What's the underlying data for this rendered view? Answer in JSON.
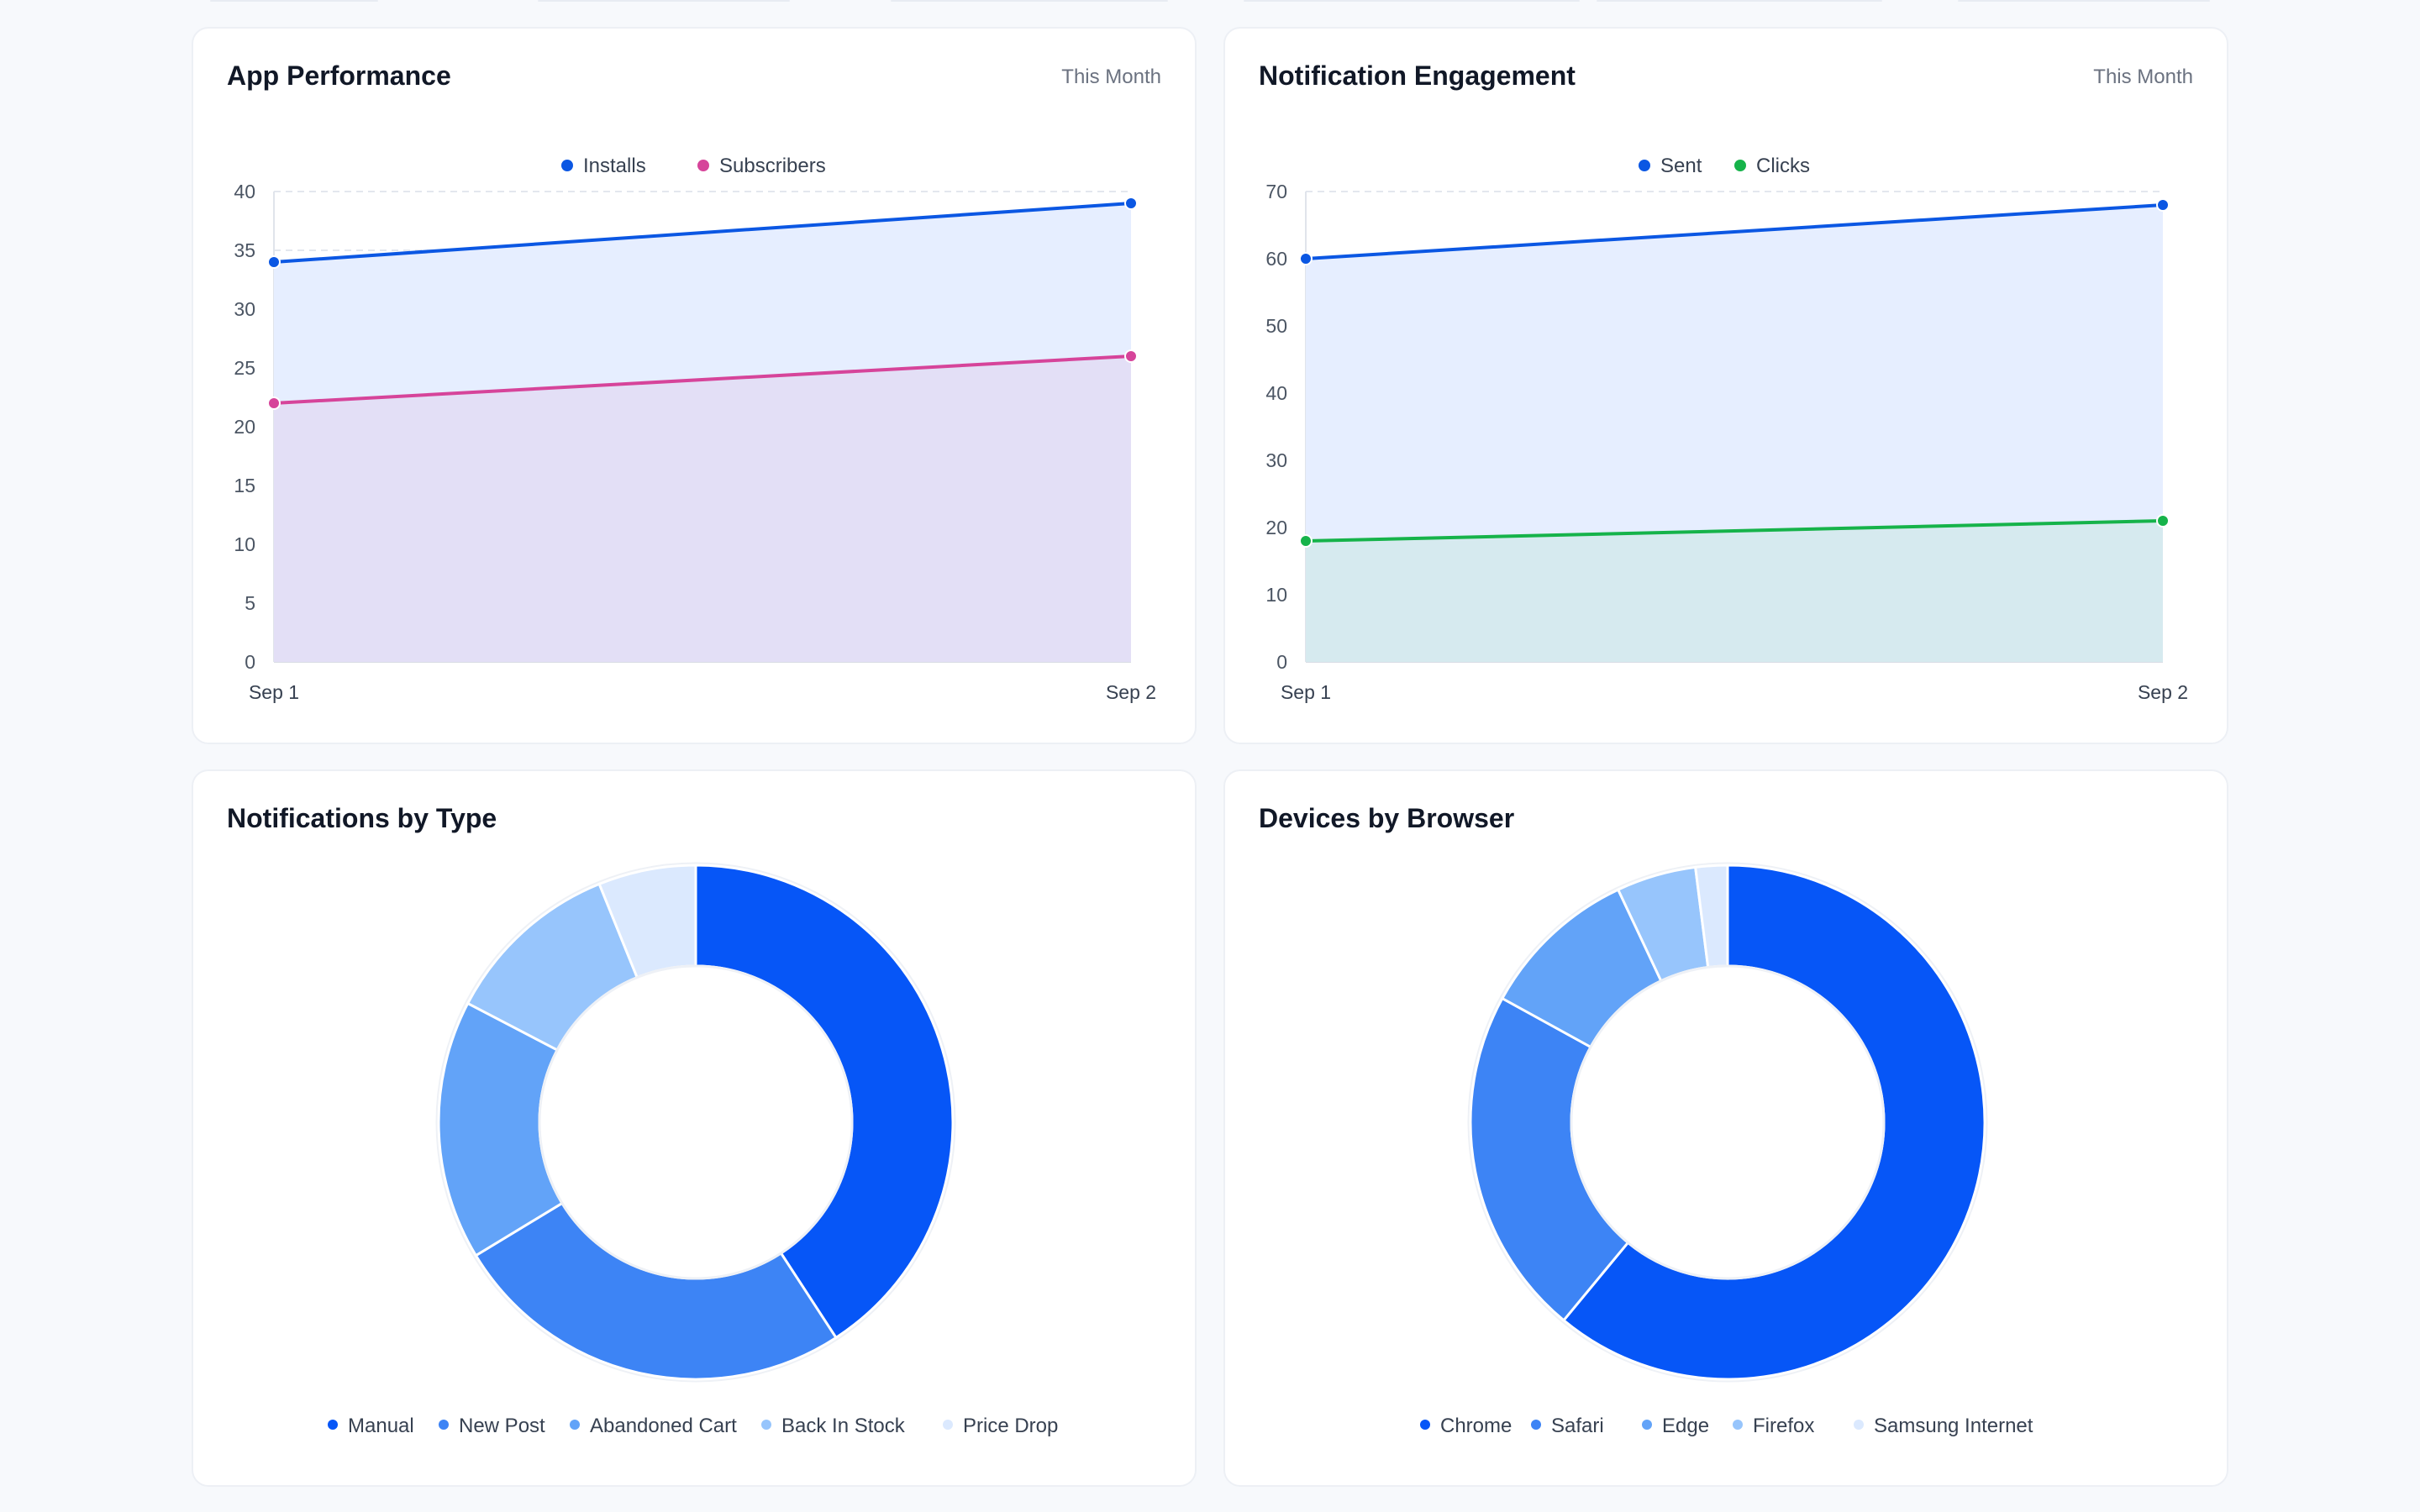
{
  "cards": {
    "app_performance": {
      "title": "App Performance",
      "period": "This Month"
    },
    "notification_engagement": {
      "title": "Notification Engagement",
      "period": "This Month"
    },
    "notifications_by_type": {
      "title": "Notifications by Type"
    },
    "devices_by_browser": {
      "title": "Devices by Browser"
    }
  },
  "chart_data": [
    {
      "id": "app-performance",
      "type": "area",
      "title": "App Performance",
      "x": [
        "Sep 1",
        "Sep 2"
      ],
      "series": [
        {
          "name": "Installs",
          "values": [
            34,
            39
          ],
          "color": "#0b57e3",
          "fill": "#e6eeff"
        },
        {
          "name": "Subscribers",
          "values": [
            22,
            26
          ],
          "color": "#d6449a",
          "fill": "#e2dcf4"
        }
      ],
      "ylim": [
        0,
        40
      ],
      "yticks": [
        0,
        5,
        10,
        15,
        20,
        25,
        30,
        35,
        40
      ],
      "grid": true,
      "legend": "top-center"
    },
    {
      "id": "notification-engagement",
      "type": "area",
      "title": "Notification Engagement",
      "x": [
        "Sep 1",
        "Sep 2"
      ],
      "series": [
        {
          "name": "Sent",
          "values": [
            60,
            68
          ],
          "color": "#0b57e3",
          "fill": "#e6eeff"
        },
        {
          "name": "Clicks",
          "values": [
            18,
            21
          ],
          "color": "#16b34a",
          "fill": "#d2e9ec"
        }
      ],
      "ylim": [
        0,
        70
      ],
      "yticks": [
        0,
        10,
        20,
        30,
        40,
        50,
        60,
        70
      ],
      "grid": true,
      "legend": "top-center"
    },
    {
      "id": "notifications-by-type",
      "type": "pie",
      "title": "Notifications by Type",
      "donut": true,
      "categories": [
        "Manual",
        "New Post",
        "Abandoned Cart",
        "Back In Stock",
        "Price Drop"
      ],
      "values": [
        40,
        25,
        16,
        11,
        6
      ],
      "colors": [
        "#0656f7",
        "#3d84f5",
        "#62a3f8",
        "#97c5fc",
        "#dbe9fe"
      ],
      "legend": "bottom"
    },
    {
      "id": "devices-by-browser",
      "type": "pie",
      "title": "Devices by Browser",
      "donut": true,
      "categories": [
        "Chrome",
        "Safari",
        "Edge",
        "Firefox",
        "Samsung Internet"
      ],
      "values": [
        61,
        22,
        10,
        5,
        2
      ],
      "colors": [
        "#0656f7",
        "#3d84f5",
        "#62a3f8",
        "#97c5fc",
        "#dbe9fe"
      ],
      "legend": "bottom"
    }
  ]
}
